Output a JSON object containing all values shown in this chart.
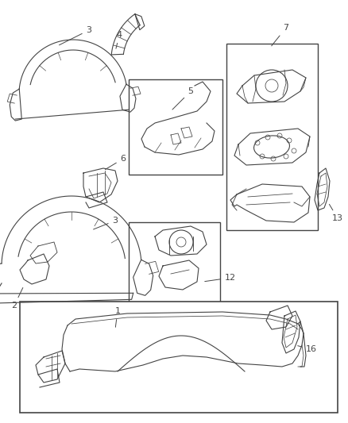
{
  "background_color": "#ffffff",
  "line_color": "#444444",
  "lw": 0.8,
  "figsize": [
    4.38,
    5.33
  ],
  "dpi": 100,
  "xlim": [
    0,
    438
  ],
  "ylim": [
    0,
    533
  ]
}
